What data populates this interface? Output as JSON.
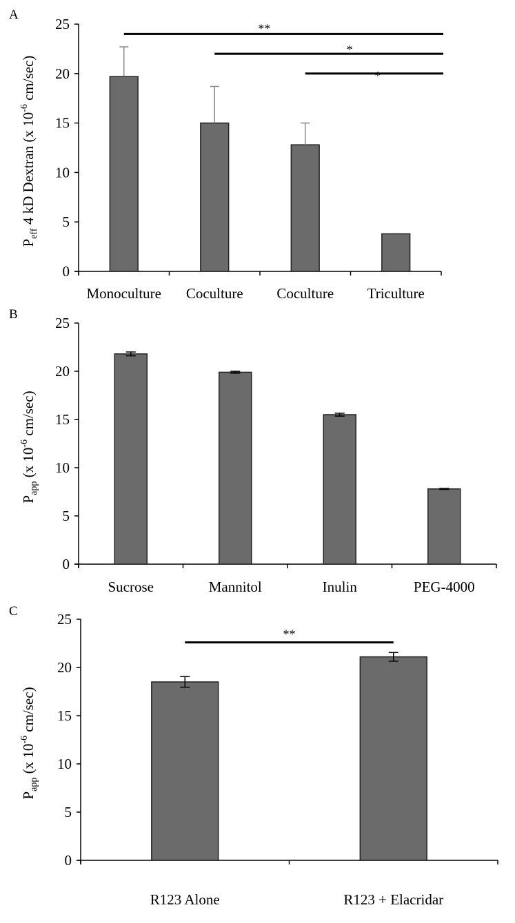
{
  "figure": {
    "background": "#ffffff",
    "bar_color": "#6b6b6b",
    "bar_edge_color": "#222222"
  },
  "chart_data": [
    {
      "type": "bar",
      "panel": "A",
      "title": "",
      "xlabel": "",
      "ylabel": {
        "main": "P",
        "sub": "eff",
        "rest": " 4 kD Dextran (x 10",
        "sup": "-6",
        "tail": " cm/sec)"
      },
      "ylim": [
        0,
        25
      ],
      "yticks": [
        0,
        5,
        10,
        15,
        20,
        25
      ],
      "grid": false,
      "categories": [
        "Monoculture",
        "Coculture",
        "Coculture",
        "Triculture"
      ],
      "values": [
        19.7,
        15.0,
        12.8,
        3.8
      ],
      "errors": [
        3.0,
        3.7,
        2.2,
        0.05
      ],
      "error_style": "upper",
      "error_color": "#888888",
      "significance": [
        {
          "from": 0,
          "to": 3,
          "label": "**",
          "y": 24.0
        },
        {
          "from": 1,
          "to": 3,
          "label": "*",
          "y": 22.0
        },
        {
          "from": 2,
          "to": 3,
          "label": "*",
          "y": 20.0
        }
      ]
    },
    {
      "type": "bar",
      "panel": "B",
      "title": "",
      "xlabel": "",
      "ylabel": {
        "main": "P",
        "sub": "app",
        "rest": " (x 10",
        "sup": "-6",
        "tail": " cm/sec)"
      },
      "ylim": [
        0,
        25
      ],
      "yticks": [
        0,
        5,
        10,
        15,
        20,
        25
      ],
      "grid": false,
      "categories": [
        "Sucrose",
        "Mannitol",
        "Inulin",
        "PEG-4000"
      ],
      "values": [
        21.8,
        19.9,
        15.5,
        7.8
      ],
      "errors": [
        0.2,
        0.1,
        0.15,
        0.05
      ],
      "error_style": "both",
      "error_color": "#000000",
      "significance": []
    },
    {
      "type": "bar",
      "panel": "C",
      "title": "",
      "xlabel": "",
      "ylabel": {
        "main": "P",
        "sub": "app",
        "rest": " (x 10",
        "sup": "-6",
        "tail": " cm/sec)"
      },
      "ylim": [
        0,
        25
      ],
      "yticks": [
        0,
        5,
        10,
        15,
        20,
        25
      ],
      "grid": false,
      "categories": [
        "R123 Alone",
        "R123 + Elacridar"
      ],
      "values": [
        18.5,
        21.1
      ],
      "errors": [
        0.55,
        0.45
      ],
      "error_style": "both",
      "error_color": "#000000",
      "significance": [
        {
          "from": 0,
          "to": 1,
          "label": "**",
          "y": 22.6
        }
      ]
    }
  ]
}
